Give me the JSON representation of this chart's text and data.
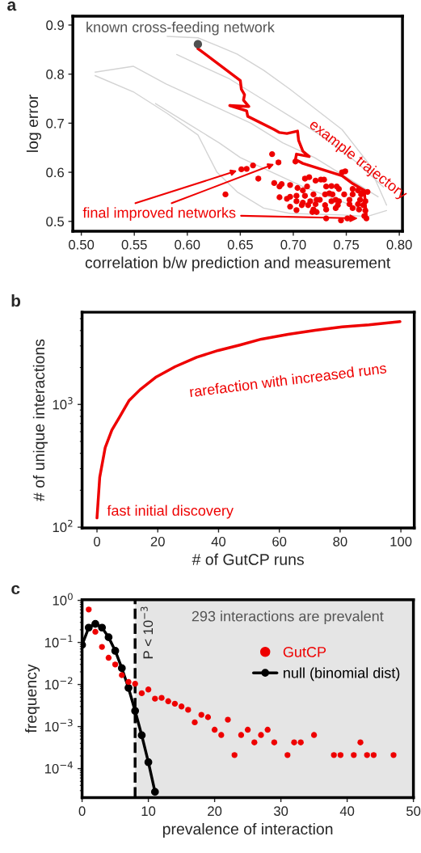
{
  "chart_data": [
    {
      "type": "scatter",
      "title": "a",
      "xlabel": "correlation b/w prediction and measurement",
      "ylabel": "log error",
      "xlim": [
        0.492,
        0.803
      ],
      "ylim": [
        0.48,
        0.918
      ],
      "xticks": [
        {
          "value": 0.5,
          "label": "0.50"
        },
        {
          "value": 0.55,
          "label": "0.55"
        },
        {
          "value": 0.6,
          "label": "0.60"
        },
        {
          "value": 0.65,
          "label": "0.65"
        },
        {
          "value": 0.7,
          "label": "0.70"
        },
        {
          "value": 0.75,
          "label": "0.75"
        },
        {
          "value": 0.8,
          "label": "0.80"
        }
      ],
      "yticks": [
        0.5,
        0.6,
        0.7,
        0.8,
        0.9
      ],
      "series": [
        {
          "type": "line",
          "color": "#d3d3d3",
          "x": [
            0.581,
            0.61,
            0.628,
            0.647,
            0.672,
            0.697,
            0.746,
            0.77,
            0.788
          ],
          "values": [
            0.877,
            0.874,
            0.858,
            0.841,
            0.808,
            0.769,
            0.687,
            0.621,
            0.533
          ]
        },
        {
          "type": "line",
          "color": "#d3d3d3",
          "x": [
            0.513,
            0.549,
            0.581,
            0.61,
            0.628,
            0.647,
            0.672,
            0.697,
            0.746,
            0.77,
            0.788
          ],
          "values": [
            0.797,
            0.764,
            0.72,
            0.676,
            0.6,
            0.56,
            0.527,
            0.516,
            0.513,
            0.51,
            0.522
          ]
        },
        {
          "type": "line",
          "color": "#d3d3d3",
          "x": [
            0.513,
            0.549,
            0.58,
            0.6,
            0.63,
            0.66,
            0.69,
            0.72,
            0.75,
            0.78
          ],
          "values": [
            0.804,
            0.816,
            0.78,
            0.76,
            0.73,
            0.7,
            0.66,
            0.63,
            0.59,
            0.55
          ]
        },
        {
          "type": "line",
          "color": "#d3d3d3",
          "x": [
            0.59,
            0.62,
            0.64,
            0.67,
            0.7,
            0.73,
            0.76,
            0.785
          ],
          "values": [
            0.84,
            0.81,
            0.79,
            0.75,
            0.71,
            0.67,
            0.62,
            0.57
          ]
        },
        {
          "type": "line",
          "color": "#d3d3d3",
          "x": [
            0.57,
            0.6,
            0.63,
            0.65,
            0.68,
            0.71,
            0.74,
            0.77
          ],
          "values": [
            0.74,
            0.7,
            0.66,
            0.63,
            0.6,
            0.57,
            0.545,
            0.52
          ]
        },
        {
          "type": "line",
          "color": "#ee0000",
          "x": [
            0.61,
            0.65,
            0.651,
            0.654,
            0.653,
            0.658,
            0.64,
            0.656,
            0.657,
            0.682,
            0.687,
            0.694,
            0.704,
            0.705,
            0.709,
            0.715,
            0.703,
            0.702,
            0.709,
            0.746,
            0.756,
            0.767,
            0.768,
            0.769
          ],
          "values": [
            0.852,
            0.787,
            0.769,
            0.758,
            0.747,
            0.734,
            0.736,
            0.725,
            0.714,
            0.687,
            0.681,
            0.679,
            0.684,
            0.665,
            0.643,
            0.632,
            0.637,
            0.626,
            0.618,
            0.593,
            0.577,
            0.563,
            0.533,
            0.508
          ]
        },
        {
          "color": "#ee0000",
          "x": [
            0.68,
            0.686,
            0.662,
            0.656,
            0.651,
            0.667,
            0.636,
            0.702,
            0.746,
            0.749,
            0.715,
            0.711,
            0.726,
            0.729,
            0.721,
            0.682,
            0.687,
            0.689,
            0.697,
            0.704,
            0.709,
            0.713,
            0.731,
            0.736,
            0.741,
            0.743,
            0.756,
            0.761,
            0.766,
            0.77,
            0.687,
            0.694,
            0.697,
            0.703,
            0.711,
            0.719,
            0.73,
            0.734,
            0.737,
            0.748,
            0.756,
            0.764,
            0.703,
            0.709,
            0.716,
            0.722,
            0.725,
            0.736,
            0.74,
            0.743,
            0.753,
            0.763,
            0.768,
            0.697,
            0.708,
            0.714,
            0.721,
            0.73,
            0.742,
            0.753,
            0.761,
            0.766,
            0.703,
            0.719,
            0.722,
            0.731,
            0.74,
            0.756,
            0.762,
            0.768,
            0.718,
            0.731,
            0.745,
            0.751,
            0.767,
            0.769
          ],
          "values": [
            0.637,
            0.62,
            0.614,
            0.607,
            0.606,
            0.587,
            0.555,
            0.622,
            0.6,
            0.602,
            0.59,
            0.587,
            0.585,
            0.585,
            0.583,
            0.578,
            0.571,
            0.576,
            0.574,
            0.568,
            0.563,
            0.571,
            0.571,
            0.572,
            0.571,
            0.566,
            0.566,
            0.563,
            0.56,
            0.56,
            0.549,
            0.546,
            0.55,
            0.552,
            0.552,
            0.555,
            0.555,
            0.557,
            0.555,
            0.555,
            0.555,
            0.555,
            0.541,
            0.538,
            0.541,
            0.544,
            0.544,
            0.541,
            0.544,
            0.541,
            0.544,
            0.544,
            0.541,
            0.53,
            0.533,
            0.533,
            0.535,
            0.533,
            0.533,
            0.535,
            0.535,
            0.533,
            0.523,
            0.524,
            0.519,
            0.524,
            0.527,
            0.527,
            0.524,
            0.522,
            0.519,
            0.506,
            0.502,
            0.506,
            0.511,
            0.506
          ]
        },
        {
          "color": "#505050",
          "x": [
            0.61
          ],
          "values": [
            0.861
          ]
        }
      ],
      "annotations": [
        {
          "text": "known cross-feeding network",
          "x": 0.61,
          "y": 0.861
        },
        {
          "text": "example trajectory",
          "x": 0.704,
          "y": 0.684
        },
        {
          "text": "final improved networks",
          "x": 0.761,
          "y": 0.506
        }
      ]
    },
    {
      "type": "line",
      "title": "b",
      "xlabel": "# of GutCP runs",
      "ylabel": "# of unique interactions",
      "log": true,
      "xlim": [
        -4.9,
        104.4
      ],
      "ylim": [
        98.5,
        5645
      ],
      "xticks": [
        0,
        20,
        40,
        60,
        80,
        100
      ],
      "yticks": [
        {
          "value": 100,
          "label": "10$^{2}$"
        },
        {
          "value": 1000,
          "label": "10$^{3}$"
        }
      ],
      "series": [
        {
          "color": "#ee0000",
          "x": [
            0,
            0.9,
            2.7,
            4.9,
            7.5,
            10.6,
            14.2,
            19.5,
            25.7,
            32.8,
            39.9,
            47,
            54.1,
            62.9,
            71.8,
            80.7,
            89.5,
            99.7
          ],
          "values": [
            119,
            255,
            445,
            618,
            796,
            1079,
            1321,
            1675,
            2032,
            2425,
            2754,
            3050,
            3407,
            3727,
            4020,
            4294,
            4449,
            4730
          ]
        }
      ],
      "annotations": [
        "rarefaction with increased runs",
        "fast initial discovery"
      ]
    },
    {
      "type": "scatter",
      "title": "c",
      "xlabel": "prevalence of interaction",
      "ylabel": "frequency",
      "log": true,
      "xlim": [
        0,
        50
      ],
      "ylim": [
        2.05e-05,
        1.04
      ],
      "xticks": [
        0,
        10,
        20,
        30,
        40,
        50
      ],
      "yticks": [
        {
          "value": 0.0001,
          "label": "10$^{−4}$"
        },
        {
          "value": 0.001,
          "label": "10$^{−3}$"
        },
        {
          "value": 0.01,
          "label": "10$^{−2}$"
        },
        {
          "value": 0.1,
          "label": "10$^{−1}$"
        },
        {
          "value": 1,
          "label": "10$^{0}$"
        }
      ],
      "legend": "top right",
      "series": [
        {
          "name": "GutCP",
          "color": "#ee0000",
          "marker": "circle",
          "x": [
            1,
            2,
            3,
            4,
            5,
            6,
            7,
            8,
            9,
            10,
            11,
            12,
            13,
            14,
            15,
            16,
            17,
            18,
            19,
            20,
            21,
            22,
            23,
            24,
            25,
            26,
            27,
            28,
            29,
            31,
            32,
            33,
            35,
            38,
            39,
            41,
            42,
            43,
            44,
            47
          ],
          "values": [
            0.606,
            0.179,
            0.0784,
            0.0432,
            0.0299,
            0.0167,
            0.0115,
            0.0104,
            0.0062,
            0.0076,
            0.0046,
            0.0048,
            0.004,
            0.0035,
            0.003,
            0.0025,
            0.00126,
            0.0019,
            0.00167,
            0.00084,
            0.00063,
            0.00146,
            0.00021,
            0.00063,
            0.00084,
            0.00042,
            0.00063,
            0.00084,
            0.00042,
            0.00021,
            0.00042,
            0.00042,
            0.00063,
            0.00021,
            0.00021,
            0.00021,
            0.00042,
            0.00021,
            0.00021,
            0.00021
          ]
        },
        {
          "type": "line",
          "name": "null (binomial dist)",
          "color": "#000000",
          "marker": "circle",
          "x": [
            0,
            1,
            2,
            3,
            4,
            5,
            6,
            7,
            8,
            9,
            10,
            11
          ],
          "values": [
            0.0873,
            0.225,
            0.276,
            0.225,
            0.133,
            0.0631,
            0.0244,
            0.0083,
            0.00235,
            0.00062,
            0.000142,
            2.8e-05
          ]
        }
      ],
      "bands": [
        {
          "axis": "x",
          "from": 8,
          "to": 50,
          "color": "#e5e5e5"
        }
      ],
      "ref_lines": [
        {
          "axis": "x",
          "value": 8,
          "label": "P < 10$^{−3}$",
          "color": "#000000",
          "line_style": "dashed"
        }
      ],
      "annotations": [
        "293 interactions are prevalent"
      ]
    }
  ]
}
